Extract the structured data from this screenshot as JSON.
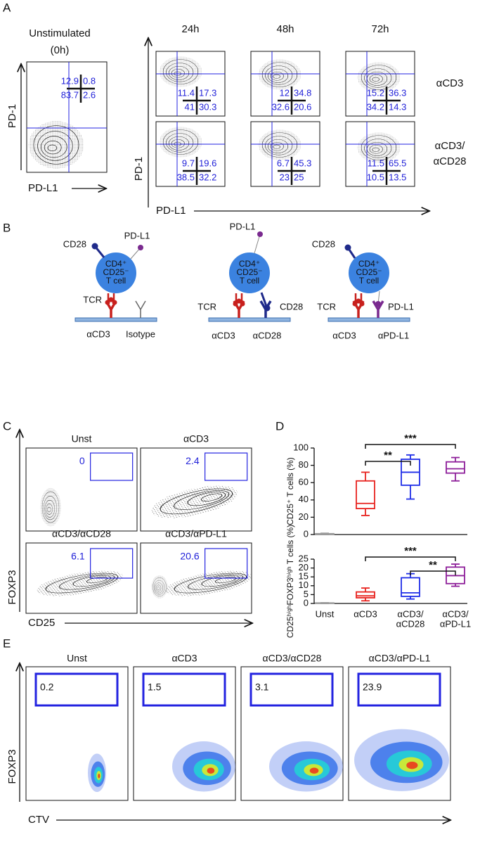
{
  "panels": {
    "A": {
      "label": "A",
      "unstimulated": {
        "title": [
          "Unstimulated",
          "(0h)"
        ],
        "quadrants": [
          12.9,
          0.8,
          83.7,
          2.6
        ],
        "y_axis": "PD-1",
        "x_axis": "PD-L1"
      },
      "time_points": [
        "24h",
        "48h",
        "72h"
      ],
      "conditions": [
        [
          "αCD3"
        ],
        [
          "αCD3/",
          "αCD28"
        ]
      ],
      "quadrants": [
        [
          [
            11.4,
            17.3,
            41,
            30.3
          ],
          [
            12,
            34.8,
            32.6,
            20.6
          ],
          [
            15.2,
            36.3,
            34.2,
            14.3
          ]
        ],
        [
          [
            9.7,
            19.6,
            38.5,
            32.2
          ],
          [
            6.7,
            45.3,
            23,
            25
          ],
          [
            11.5,
            65.5,
            10.5,
            13.5
          ]
        ]
      ],
      "y_axis": "PD-1",
      "x_axis": "PD-L1"
    },
    "B": {
      "label": "B",
      "cell": [
        "CD4⁺",
        "CD25⁻",
        "T cell"
      ],
      "diagrams": [
        {
          "labels": [
            "CD28",
            "PD-L1",
            "TCR",
            "αCD3",
            "Isotype"
          ]
        },
        {
          "labels": [
            "PD-L1",
            "TCR",
            "CD28",
            "αCD3",
            "αCD28"
          ]
        },
        {
          "labels": [
            "CD28",
            "TCR",
            "PD-L1",
            "αCD3",
            "αPD-L1"
          ]
        }
      ]
    },
    "C": {
      "label": "C",
      "plots": [
        {
          "title": "Unst",
          "gate": 0
        },
        {
          "title": "αCD3",
          "gate": 2.4
        },
        {
          "title": "αCD3/αCD28",
          "gate": 6.1
        },
        {
          "title": "αCD3/αPD-L1",
          "gate": 20.6
        }
      ],
      "y_axis": "FOXP3",
      "x_axis": "CD25"
    },
    "D": {
      "label": "D"
    },
    "E": {
      "label": "E",
      "plots": [
        {
          "title": "Unst",
          "gate": 0.2
        },
        {
          "title": "αCD3",
          "gate": 1.5
        },
        {
          "title": "αCD3/αCD28",
          "gate": 3.1
        },
        {
          "title": "αCD3/αPD-L1",
          "gate": 23.9
        }
      ],
      "y_axis": "FOXP3",
      "x_axis": "CTV"
    }
  },
  "chart_data": [
    {
      "type": "box",
      "y_label": "CD25⁺ T cells (%)",
      "ylim": [
        0,
        100
      ],
      "yticks": [
        0,
        20,
        40,
        60,
        80,
        100
      ],
      "boxes": [
        {
          "min": 0,
          "q1": 0,
          "median": 0.5,
          "q3": 1,
          "max": 1.5,
          "color": "#9a9a9a"
        },
        {
          "min": 22,
          "q1": 30,
          "median": 36,
          "q3": 62,
          "max": 72,
          "color": "#e8231f"
        },
        {
          "min": 41,
          "q1": 57,
          "median": 72,
          "q3": 87,
          "max": 92,
          "color": "#1f2ee8"
        },
        {
          "min": 62,
          "q1": 71,
          "median": 76,
          "q3": 84,
          "max": 89,
          "color": "#8e1f9a"
        }
      ],
      "annotations": [
        "***",
        "**"
      ]
    },
    {
      "type": "box",
      "y_label": "CD25ʰⁱᵍʰFOXP3ʰⁱᵍʰ T cells (%)",
      "ylim": [
        0,
        25
      ],
      "yticks": [
        0,
        5,
        10,
        15,
        20,
        25
      ],
      "categories": [
        [
          "Unst"
        ],
        [
          "αCD3"
        ],
        [
          "αCD3/",
          "αCD28"
        ],
        [
          "αCD3/",
          "αPD-L1"
        ]
      ],
      "boxes": [
        {
          "min": 0,
          "q1": 0.1,
          "median": 0.2,
          "q3": 0.3,
          "max": 0.4,
          "color": "#9a9a9a"
        },
        {
          "min": 1.5,
          "q1": 3.2,
          "median": 4.3,
          "q3": 6.5,
          "max": 8.7,
          "color": "#e8231f"
        },
        {
          "min": 2.5,
          "q1": 4,
          "median": 6,
          "q3": 14.5,
          "max": 16.8,
          "color": "#1f2ee8"
        },
        {
          "min": 9.7,
          "q1": 11.2,
          "median": 15.7,
          "q3": 20.5,
          "max": 22.2,
          "color": "#8e1f9a"
        }
      ],
      "annotations": [
        "***",
        "**"
      ]
    }
  ]
}
